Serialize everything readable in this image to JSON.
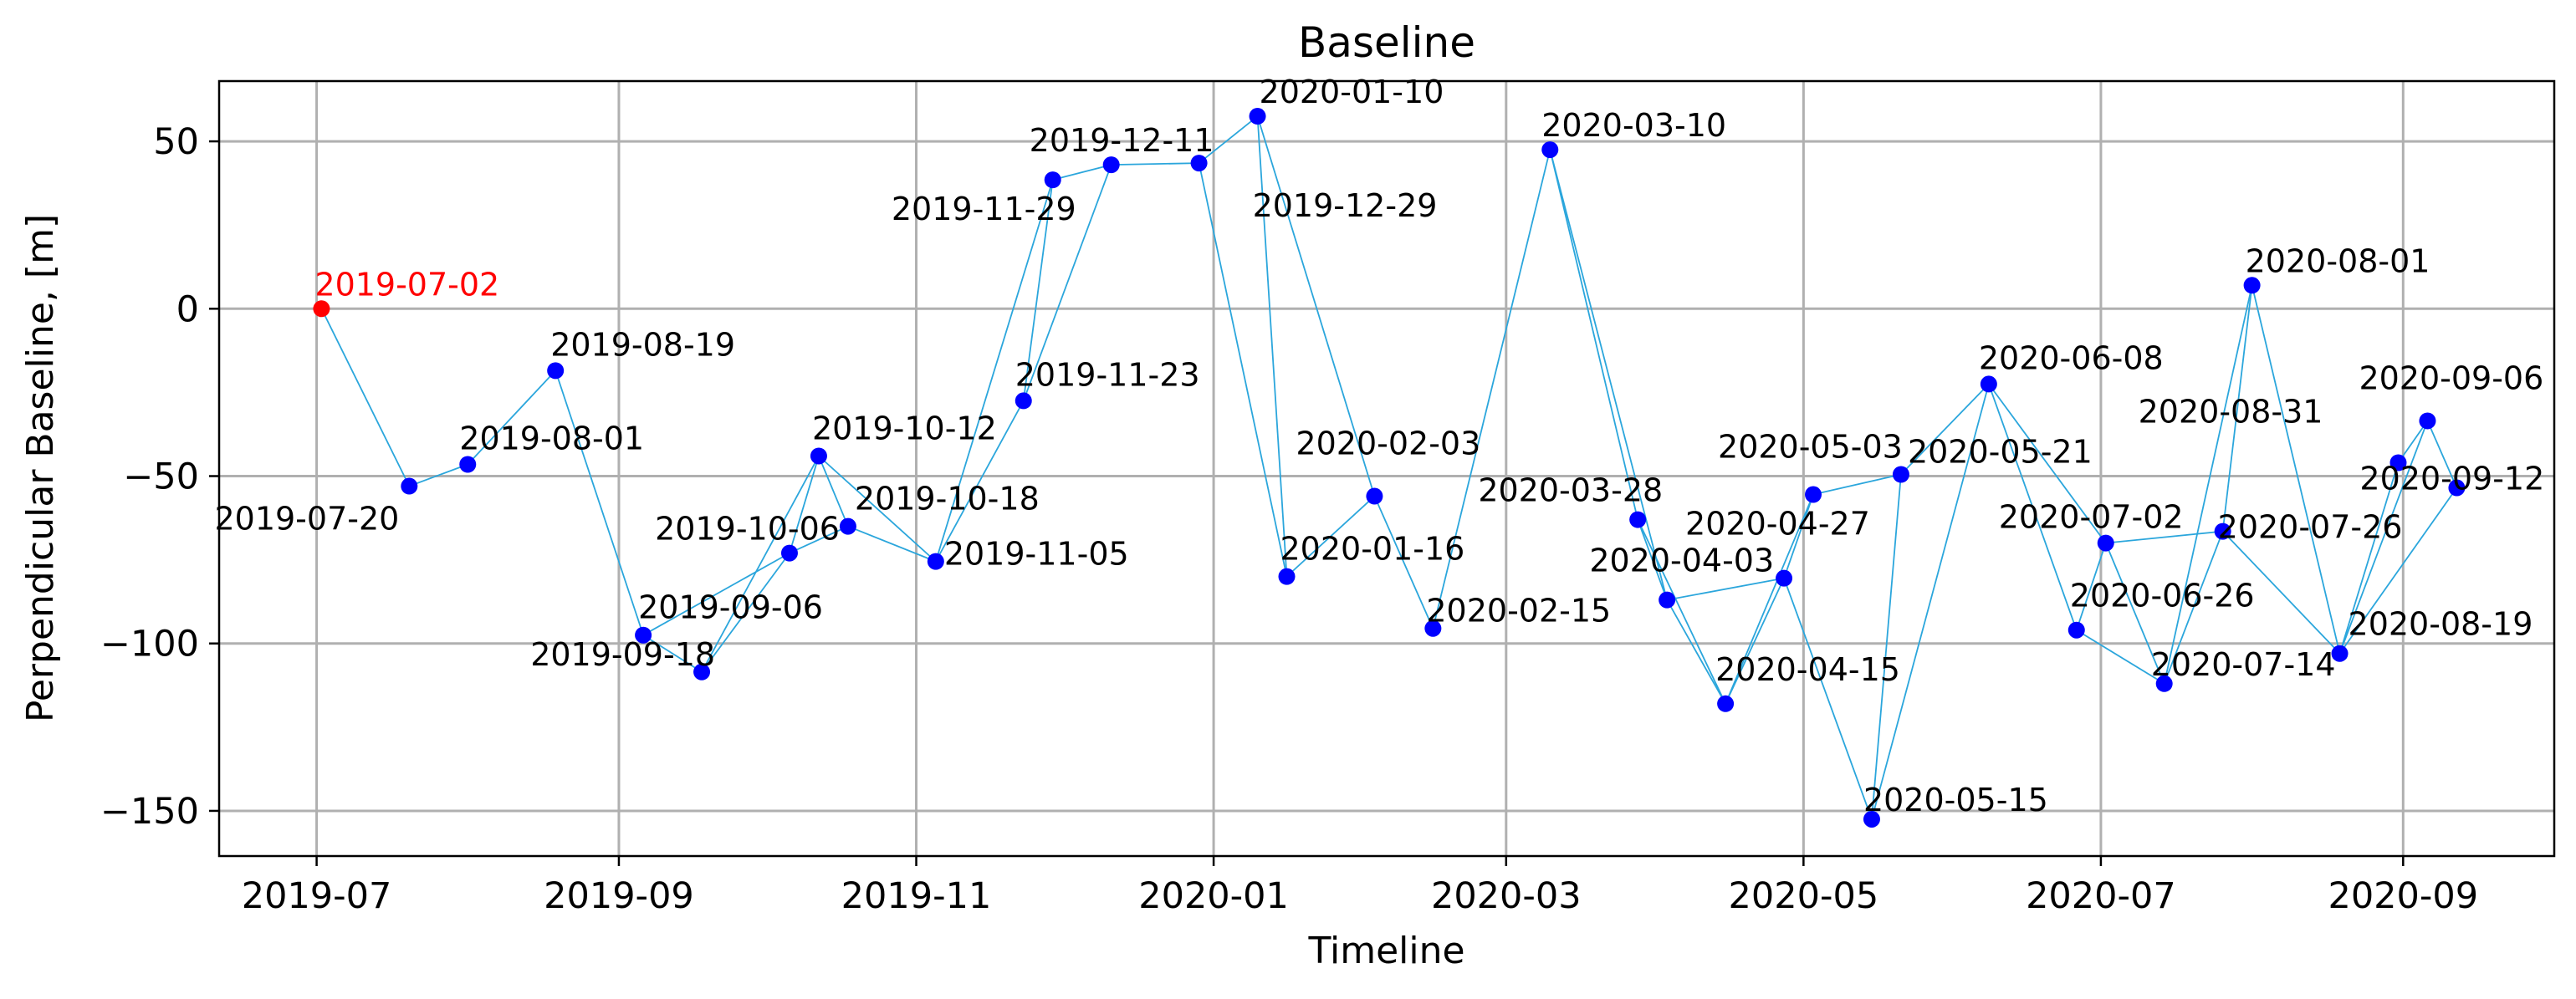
{
  "chart_data": {
    "type": "scatter",
    "title": "Baseline",
    "xlabel": "Timeline",
    "ylabel": "Perpendicular Baseline, [m]",
    "xlim": [
      "2019-06-11",
      "2020-10-02"
    ],
    "ylim": [
      -163.5,
      68
    ],
    "x_ticks": [
      "2019-07-01",
      "2019-09-01",
      "2019-11-01",
      "2020-01-01",
      "2020-03-01",
      "2020-05-01",
      "2020-07-01",
      "2020-09-01"
    ],
    "x_tick_labels": [
      "2019-07",
      "2019-09",
      "2019-11",
      "2020-01",
      "2020-03",
      "2020-05",
      "2020-07",
      "2020-09"
    ],
    "y_ticks": [
      50,
      0,
      -50,
      -100,
      -150
    ],
    "y_tick_labels": [
      "50",
      "0",
      "−50",
      "−100",
      "−150"
    ],
    "grid": true,
    "colors": {
      "point": "#0000ff",
      "reference": "#ff0000",
      "edge": "#2ba6dc",
      "grid": "#b0b0b0"
    },
    "points": [
      {
        "date": "2019-07-02",
        "baseline": 0,
        "label": "2019-07-02",
        "reference": true
      },
      {
        "date": "2019-07-20",
        "baseline": -53,
        "label": "2019-07-20"
      },
      {
        "date": "2019-08-01",
        "baseline": -46.5,
        "label": "2019-08-01"
      },
      {
        "date": "2019-08-19",
        "baseline": -18.5,
        "label": "2019-08-19"
      },
      {
        "date": "2019-09-06",
        "baseline": -97.5,
        "label": "2019-09-06"
      },
      {
        "date": "2019-09-18",
        "baseline": -108.5,
        "label": "2019-09-18"
      },
      {
        "date": "2019-10-06",
        "baseline": -73,
        "label": "2019-10-06"
      },
      {
        "date": "2019-10-12",
        "baseline": -44,
        "label": "2019-10-12"
      },
      {
        "date": "2019-10-18",
        "baseline": -65,
        "label": "2019-10-18"
      },
      {
        "date": "2019-11-05",
        "baseline": -75.5,
        "label": "2019-11-05"
      },
      {
        "date": "2019-11-23",
        "baseline": -27.5,
        "label": "2019-11-23"
      },
      {
        "date": "2019-11-29",
        "baseline": 38.5,
        "label": "2019-11-29"
      },
      {
        "date": "2019-12-11",
        "baseline": 43,
        "label": "2019-12-11"
      },
      {
        "date": "2019-12-29",
        "baseline": 43.5,
        "label": "2019-12-29"
      },
      {
        "date": "2020-01-10",
        "baseline": 57.5,
        "label": "2020-01-10"
      },
      {
        "date": "2020-01-16",
        "baseline": -80,
        "label": "2020-01-16"
      },
      {
        "date": "2020-02-03",
        "baseline": -56,
        "label": "2020-02-03"
      },
      {
        "date": "2020-02-15",
        "baseline": -95.5,
        "label": "2020-02-15"
      },
      {
        "date": "2020-03-10",
        "baseline": 47.5,
        "label": "2020-03-10"
      },
      {
        "date": "2020-03-28",
        "baseline": -63,
        "label": "2020-03-28"
      },
      {
        "date": "2020-04-03",
        "baseline": -87,
        "label": "2020-04-03"
      },
      {
        "date": "2020-04-15",
        "baseline": -118,
        "label": "2020-04-15"
      },
      {
        "date": "2020-04-27",
        "baseline": -80.5,
        "label": "2020-04-27"
      },
      {
        "date": "2020-05-03",
        "baseline": -55.5,
        "label": "2020-05-03"
      },
      {
        "date": "2020-05-15",
        "baseline": -152.5,
        "label": "2020-05-15"
      },
      {
        "date": "2020-05-21",
        "baseline": -49.5,
        "label": "2020-05-21"
      },
      {
        "date": "2020-06-08",
        "baseline": -22.5,
        "label": "2020-06-08"
      },
      {
        "date": "2020-06-26",
        "baseline": -96,
        "label": "2020-06-26"
      },
      {
        "date": "2020-07-02",
        "baseline": -70,
        "label": "2020-07-02"
      },
      {
        "date": "2020-07-14",
        "baseline": -112,
        "label": "2020-07-14"
      },
      {
        "date": "2020-07-26",
        "baseline": -66.5,
        "label": "2020-07-26"
      },
      {
        "date": "2020-08-01",
        "baseline": 7,
        "label": "2020-08-01"
      },
      {
        "date": "2020-08-19",
        "baseline": -103,
        "label": "2020-08-19"
      },
      {
        "date": "2020-08-31",
        "baseline": -46,
        "label": "2020-08-31"
      },
      {
        "date": "2020-09-06",
        "baseline": -33.5,
        "label": "2020-09-06"
      },
      {
        "date": "2020-09-12",
        "baseline": -53.5,
        "label": "2020-09-12"
      }
    ],
    "edges": [
      [
        "2019-07-02",
        "2019-07-20"
      ],
      [
        "2019-07-20",
        "2019-08-01"
      ],
      [
        "2019-08-01",
        "2019-08-19"
      ],
      [
        "2019-08-19",
        "2019-09-06"
      ],
      [
        "2019-09-06",
        "2019-09-18"
      ],
      [
        "2019-09-06",
        "2019-10-06"
      ],
      [
        "2019-09-18",
        "2019-10-06"
      ],
      [
        "2019-09-18",
        "2019-10-12"
      ],
      [
        "2019-10-06",
        "2019-10-12"
      ],
      [
        "2019-10-06",
        "2019-10-18"
      ],
      [
        "2019-10-12",
        "2019-10-18"
      ],
      [
        "2019-10-12",
        "2019-11-05"
      ],
      [
        "2019-10-18",
        "2019-11-05"
      ],
      [
        "2019-11-05",
        "2019-11-23"
      ],
      [
        "2019-11-05",
        "2019-11-29"
      ],
      [
        "2019-11-23",
        "2019-11-29"
      ],
      [
        "2019-11-23",
        "2019-12-11"
      ],
      [
        "2019-11-29",
        "2019-12-11"
      ],
      [
        "2019-12-11",
        "2019-12-29"
      ],
      [
        "2019-12-29",
        "2020-01-10"
      ],
      [
        "2019-12-29",
        "2020-01-16"
      ],
      [
        "2020-01-10",
        "2020-01-16"
      ],
      [
        "2020-01-10",
        "2020-02-03"
      ],
      [
        "2020-01-16",
        "2020-02-03"
      ],
      [
        "2020-02-03",
        "2020-02-15"
      ],
      [
        "2020-02-15",
        "2020-03-10"
      ],
      [
        "2020-03-10",
        "2020-03-28"
      ],
      [
        "2020-03-10",
        "2020-04-03"
      ],
      [
        "2020-03-28",
        "2020-04-03"
      ],
      [
        "2020-03-28",
        "2020-04-15"
      ],
      [
        "2020-04-03",
        "2020-04-15"
      ],
      [
        "2020-04-03",
        "2020-04-27"
      ],
      [
        "2020-04-15",
        "2020-04-27"
      ],
      [
        "2020-04-15",
        "2020-05-03"
      ],
      [
        "2020-04-27",
        "2020-05-03"
      ],
      [
        "2020-04-27",
        "2020-05-15"
      ],
      [
        "2020-05-03",
        "2020-05-21"
      ],
      [
        "2020-05-15",
        "2020-05-21"
      ],
      [
        "2020-05-15",
        "2020-06-08"
      ],
      [
        "2020-05-21",
        "2020-06-08"
      ],
      [
        "2020-06-08",
        "2020-06-26"
      ],
      [
        "2020-06-08",
        "2020-07-02"
      ],
      [
        "2020-06-26",
        "2020-07-02"
      ],
      [
        "2020-06-26",
        "2020-07-14"
      ],
      [
        "2020-07-02",
        "2020-07-14"
      ],
      [
        "2020-07-02",
        "2020-07-26"
      ],
      [
        "2020-07-14",
        "2020-07-26"
      ],
      [
        "2020-07-14",
        "2020-08-01"
      ],
      [
        "2020-07-26",
        "2020-08-01"
      ],
      [
        "2020-07-26",
        "2020-08-19"
      ],
      [
        "2020-08-01",
        "2020-08-19"
      ],
      [
        "2020-08-19",
        "2020-08-31"
      ],
      [
        "2020-08-19",
        "2020-09-06"
      ],
      [
        "2020-08-19",
        "2020-09-12"
      ],
      [
        "2020-08-31",
        "2020-09-06"
      ],
      [
        "2020-09-06",
        "2020-09-12"
      ]
    ]
  }
}
